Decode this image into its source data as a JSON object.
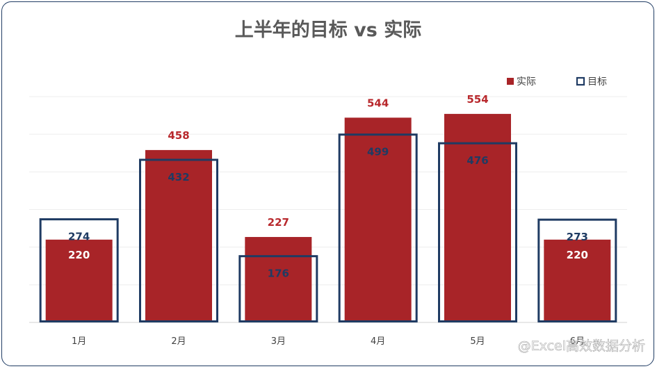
{
  "chart_data": {
    "type": "bar",
    "title": "上半年的目标 vs 实际",
    "categories": [
      "1月",
      "2月",
      "3月",
      "4月",
      "5月",
      "6月"
    ],
    "series": [
      {
        "name": "实际",
        "values": [
          220,
          458,
          227,
          544,
          554,
          220
        ]
      },
      {
        "name": "目标",
        "values": [
          274,
          432,
          176,
          499,
          476,
          273
        ]
      }
    ],
    "ylim": [
      0,
      600
    ],
    "grid": true,
    "legend": "top-right",
    "colors": {
      "actual": "#a82428",
      "target": "#1f3b63",
      "actual_label": "#b8282c",
      "target_label": "#1f3b63",
      "actual_inside_label": "#ffffff"
    }
  },
  "watermark": "@Excel高效数据分析"
}
